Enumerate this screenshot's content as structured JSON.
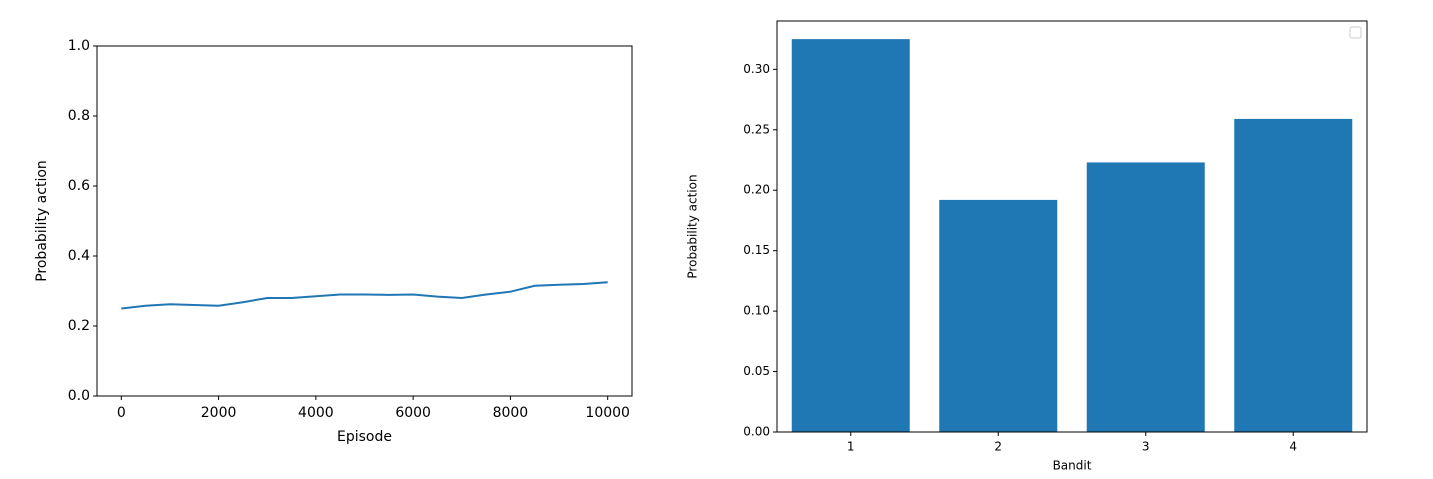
{
  "chart_data": [
    {
      "type": "line",
      "xlabel": "Episode",
      "ylabel": "Probability action",
      "color": "#1f77b4",
      "x": [
        0,
        500,
        1000,
        1500,
        2000,
        2500,
        3000,
        3500,
        4000,
        4500,
        5000,
        5500,
        6000,
        6500,
        7000,
        7500,
        8000,
        8500,
        9000,
        9500,
        10000
      ],
      "values": [
        0.25,
        0.258,
        0.262,
        0.26,
        0.258,
        0.268,
        0.28,
        0.28,
        0.285,
        0.29,
        0.29,
        0.289,
        0.29,
        0.284,
        0.28,
        0.29,
        0.298,
        0.315,
        0.318,
        0.32,
        0.325
      ],
      "xlim": [
        -500,
        10500
      ],
      "xticks": [
        0,
        2000,
        4000,
        6000,
        8000,
        10000
      ],
      "ylim": [
        0,
        1
      ],
      "yticks": [
        {
          "value": 0,
          "label": "0.0"
        },
        0.2,
        0.4,
        0.6,
        0.8,
        {
          "value": 1,
          "label": "1.0"
        }
      ]
    },
    {
      "type": "bar",
      "xlabel": "Bandit",
      "ylabel": "Probability action",
      "color": "#1f77b4",
      "categories": [
        "1",
        "2",
        "3",
        "4"
      ],
      "values": [
        0.325,
        0.192,
        0.223,
        0.259
      ],
      "ylim": [
        0,
        0.34
      ],
      "yticks": [
        {
          "value": 0,
          "label": "0.00"
        },
        {
          "value": 0.05,
          "label": "0.05"
        },
        {
          "value": 0.1,
          "label": "0.10"
        },
        {
          "value": 0.15,
          "label": "0.15"
        },
        {
          "value": 0.2,
          "label": "0.20"
        },
        {
          "value": 0.25,
          "label": "0.25"
        },
        {
          "value": 0.3,
          "label": "0.30"
        }
      ]
    }
  ]
}
